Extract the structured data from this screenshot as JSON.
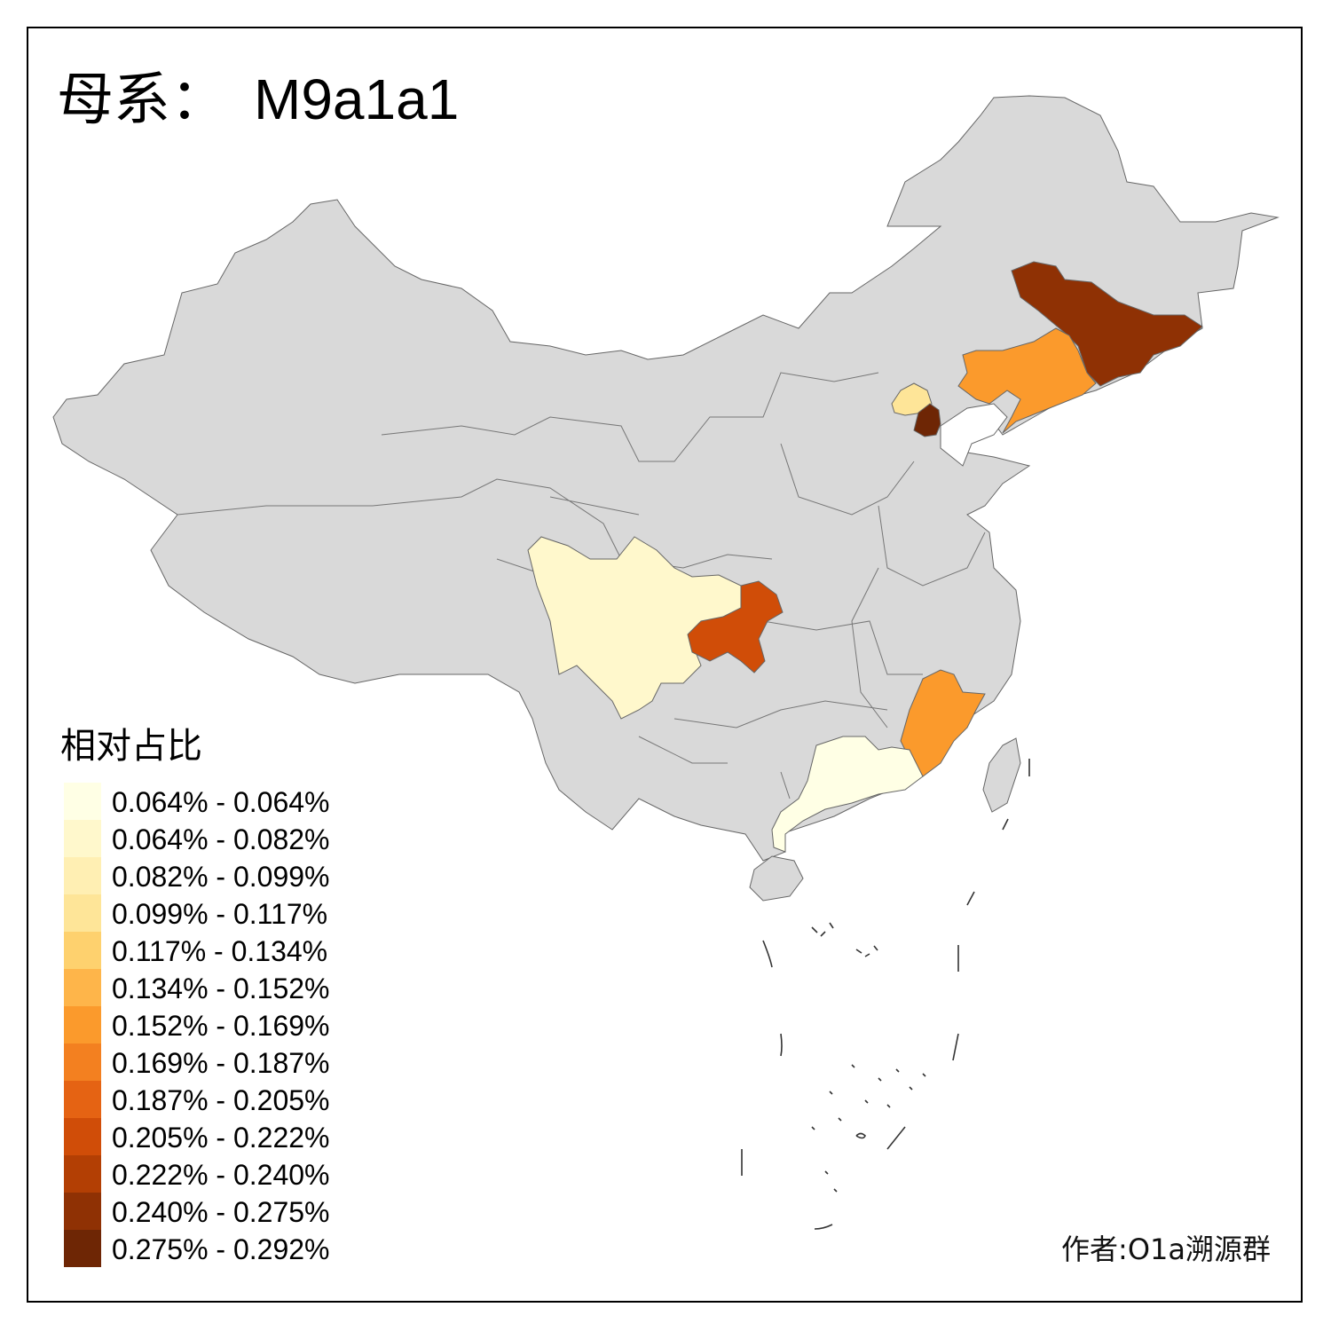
{
  "title": {
    "label": "母系：",
    "value": "M9a1a1"
  },
  "legend": {
    "title": "相对占比",
    "entries": [
      {
        "label": "0.064% - 0.064%",
        "color": "#ffffe5"
      },
      {
        "label": "0.064% - 0.082%",
        "color": "#fff8cc"
      },
      {
        "label": "0.082% - 0.099%",
        "color": "#ffefb3"
      },
      {
        "label": "0.099% - 0.117%",
        "color": "#fee598"
      },
      {
        "label": "0.117% - 0.134%",
        "color": "#fed16e"
      },
      {
        "label": "0.134% - 0.152%",
        "color": "#feb54a"
      },
      {
        "label": "0.152% - 0.169%",
        "color": "#fb9a2c"
      },
      {
        "label": "0.169% - 0.187%",
        "color": "#f38020"
      },
      {
        "label": "0.187% - 0.205%",
        "color": "#e56313"
      },
      {
        "label": "0.205% - 0.222%",
        "color": "#d04d08"
      },
      {
        "label": "0.222% - 0.240%",
        "color": "#b33f04"
      },
      {
        "label": "0.240% - 0.275%",
        "color": "#8f3104"
      },
      {
        "label": "0.275% - 0.292%",
        "color": "#6e2605"
      }
    ]
  },
  "map": {
    "base_color": "#d9d9d9",
    "highlighted_regions": [
      {
        "region": "jilin",
        "color": "#8f3104"
      },
      {
        "region": "liaoning",
        "color": "#fb9a2c"
      },
      {
        "region": "beijing",
        "color": "#fee598"
      },
      {
        "region": "tianjin",
        "color": "#6e2605"
      },
      {
        "region": "sichuan",
        "color": "#fff8cc"
      },
      {
        "region": "chongqing",
        "color": "#d04d08"
      },
      {
        "region": "fujian",
        "color": "#fb9a2c"
      },
      {
        "region": "guangdong",
        "color": "#ffffe5"
      }
    ]
  },
  "credit": "作者:O1a溯源群"
}
